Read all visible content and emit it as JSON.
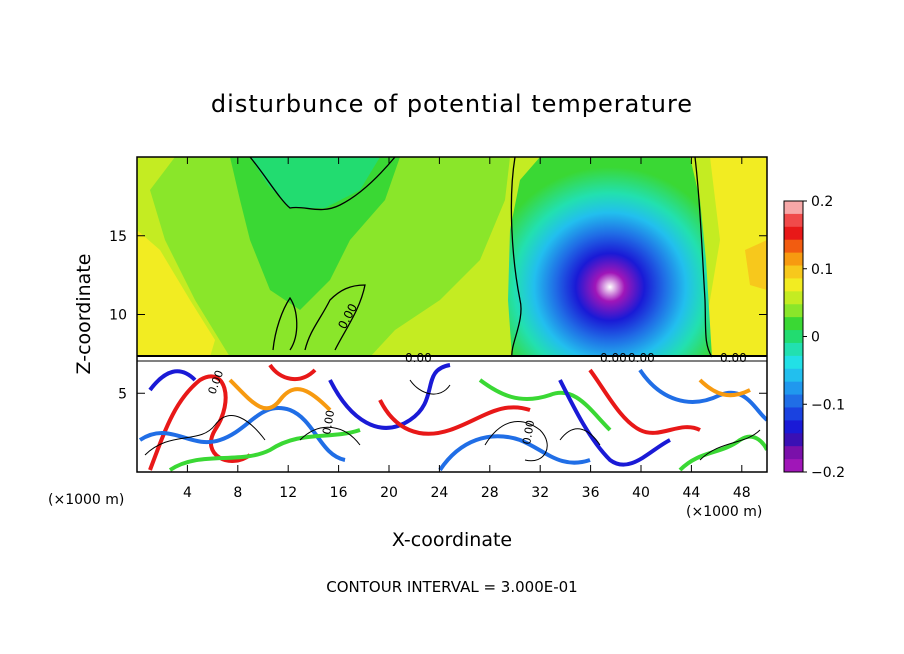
{
  "chart_data": {
    "type": "heatmap",
    "title": "disturbunce of potential temperature",
    "xlabel": "X-coordinate",
    "ylabel": "Z-coordinate",
    "x_unit": "(×1000 m)",
    "z_unit": "(×1000 m)",
    "x_ticks": [
      4,
      8,
      12,
      16,
      20,
      24,
      28,
      32,
      36,
      40,
      44,
      48
    ],
    "y_ticks": [
      5,
      10,
      15
    ],
    "xlim": [
      0,
      50
    ],
    "ylim": [
      0,
      20
    ],
    "colorbar": {
      "ticks": [
        0.2,
        0.1,
        0,
        -0.1,
        -0.2
      ],
      "tick_labels": [
        "0.2",
        "0.1",
        "0",
        "−0.1",
        "−0.2"
      ],
      "range": [
        -0.2,
        0.2
      ],
      "colors": [
        "#f7a8a8",
        "#f04a4a",
        "#e81818",
        "#f25c10",
        "#f79a10",
        "#f7c81c",
        "#f2ec22",
        "#c4ec22",
        "#8ae62a",
        "#3ad834",
        "#22dc70",
        "#22e0b0",
        "#22e0e6",
        "#22bfee",
        "#2098ee",
        "#206ee6",
        "#1a42e0",
        "#1a1ad6",
        "#3a10b4",
        "#7a10aa",
        "#a016b8"
      ]
    },
    "contour_labels": [
      "0.00",
      "0.00",
      "0.00",
      "0.00",
      "0.00",
      "0.00",
      "0.00",
      "0.00"
    ],
    "footer": "CONTOUR INTERVAL = 3.000E-01"
  }
}
